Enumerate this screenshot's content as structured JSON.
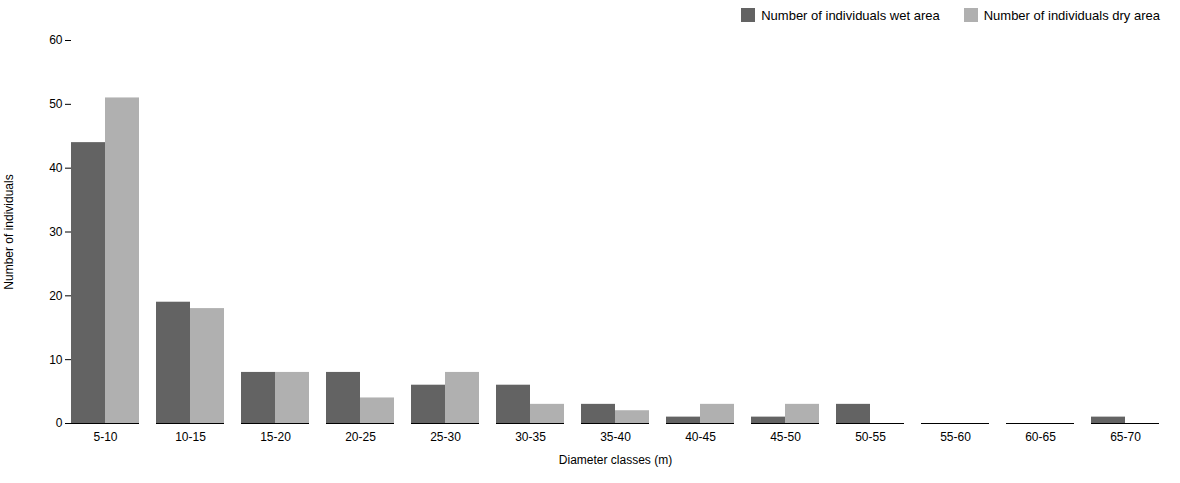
{
  "chart_data": {
    "type": "bar",
    "categories": [
      "5-10",
      "10-15",
      "15-20",
      "20-25",
      "25-30",
      "30-35",
      "35-40",
      "40-45",
      "45-50",
      "50-55",
      "55-60",
      "60-65",
      "65-70"
    ],
    "series": [
      {
        "name": "Number of individuals wet area",
        "color": "#636363",
        "values": [
          44,
          19,
          8,
          8,
          6,
          6,
          3,
          1,
          1,
          3,
          0,
          0,
          1
        ]
      },
      {
        "name": "Number of individuals dry area",
        "color": "#b0b0b0",
        "values": [
          51,
          18,
          8,
          4,
          8,
          3,
          2,
          3,
          3,
          0,
          0,
          0,
          0
        ]
      }
    ],
    "xlabel": "Diameter classes (m)",
    "ylabel": "Number of individuals",
    "ylim": [
      0,
      60
    ],
    "yticks": [
      0,
      10,
      20,
      30,
      40,
      50,
      60
    ],
    "grid": false,
    "legend": "upper right"
  }
}
